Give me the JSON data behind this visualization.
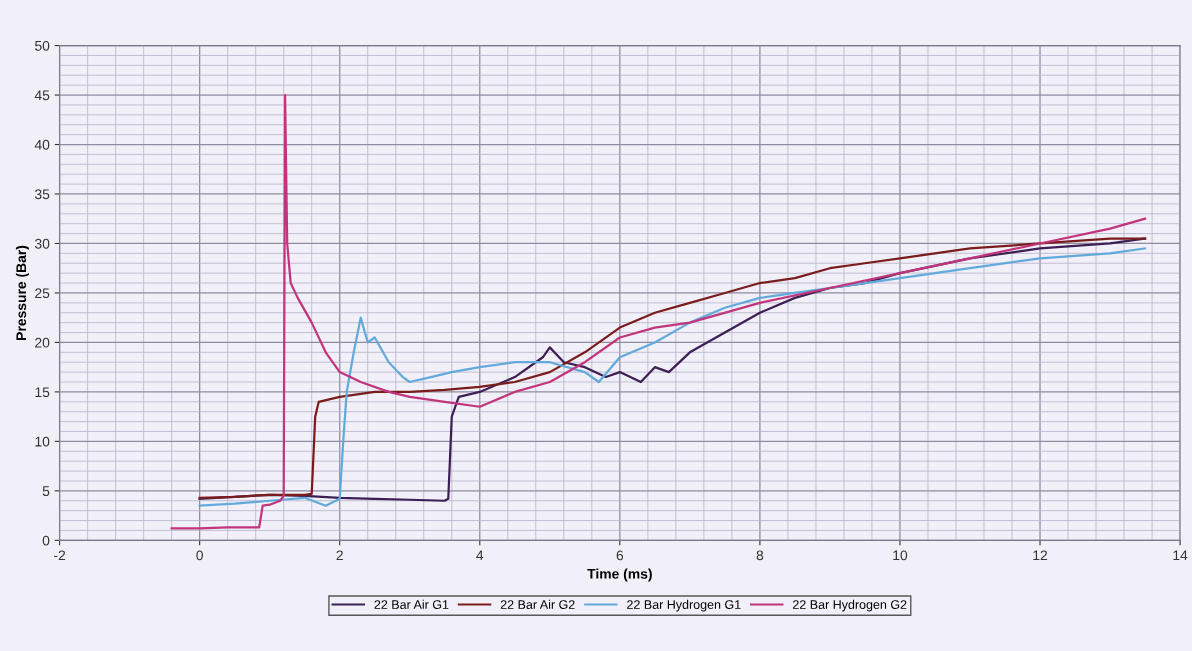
{
  "chart_data": {
    "type": "line",
    "xlabel": "Time (ms)",
    "ylabel": "Pressure (Bar)",
    "xlim": [
      -2,
      14
    ],
    "xticks": [
      -2,
      0,
      2,
      4,
      6,
      8,
      10,
      12,
      14
    ],
    "ylim": [
      0,
      50
    ],
    "yticks": [
      0,
      5,
      10,
      15,
      20,
      25,
      30,
      35,
      40,
      45,
      50
    ],
    "grid": true,
    "legend": "bottom",
    "marker": "none",
    "line_style": "solid",
    "series": [
      {
        "name": "22 Bar Air G1",
        "color": "#3b1f55",
        "x": [
          0,
          0.5,
          1.0,
          1.5,
          2.0,
          2.5,
          3.0,
          3.5,
          3.55,
          3.6,
          3.7,
          4.0,
          4.5,
          4.9,
          5.0,
          5.2,
          5.5,
          5.8,
          6.0,
          6.3,
          6.5,
          6.7,
          7.0,
          7.5,
          8.0,
          8.5,
          9.0,
          9.5,
          10.0,
          11.0,
          12.0,
          13.0,
          13.5
        ],
        "values": [
          4.2,
          4.4,
          4.6,
          4.5,
          4.3,
          4.2,
          4.1,
          4.0,
          4.2,
          12.5,
          14.5,
          15.0,
          16.5,
          18.5,
          19.5,
          18.0,
          17.5,
          16.5,
          17.0,
          16.0,
          17.5,
          17.0,
          19.0,
          21.0,
          23.0,
          24.5,
          25.5,
          26.0,
          27.0,
          28.5,
          29.5,
          30.0,
          30.5
        ]
      },
      {
        "name": "22 Bar Air G2",
        "color": "#7b1c1c",
        "x": [
          0,
          0.5,
          1.0,
          1.5,
          1.6,
          1.65,
          1.7,
          2.0,
          2.5,
          3.0,
          3.5,
          4.0,
          4.5,
          5.0,
          5.5,
          6.0,
          6.5,
          7.0,
          7.5,
          8.0,
          8.5,
          9.0,
          9.5,
          10.0,
          10.5,
          11.0,
          12.0,
          13.0,
          13.5
        ],
        "values": [
          4.3,
          4.4,
          4.6,
          4.6,
          4.7,
          12.5,
          14.0,
          14.5,
          15.0,
          15.0,
          15.2,
          15.5,
          16.0,
          17.0,
          19.0,
          21.5,
          23.0,
          24.0,
          25.0,
          26.0,
          26.5,
          27.5,
          28.0,
          28.5,
          29.0,
          29.5,
          30.0,
          30.5,
          30.5
        ]
      },
      {
        "name": "22 Bar Hydrogen G1",
        "color": "#62a9dc",
        "x": [
          0,
          0.5,
          1.0,
          1.5,
          1.8,
          2.0,
          2.05,
          2.1,
          2.2,
          2.3,
          2.4,
          2.5,
          2.7,
          2.9,
          3.0,
          3.3,
          3.6,
          4.0,
          4.5,
          5.0,
          5.5,
          5.7,
          6.0,
          6.5,
          7.0,
          7.5,
          8.0,
          8.5,
          9.0,
          9.5,
          10.0,
          11.0,
          12.0,
          13.0,
          13.5
        ],
        "values": [
          3.5,
          3.7,
          4.0,
          4.3,
          3.5,
          4.2,
          10.0,
          15.0,
          19.0,
          22.5,
          20.0,
          20.5,
          18.0,
          16.5,
          16.0,
          16.5,
          17.0,
          17.5,
          18.0,
          18.0,
          17.0,
          16.0,
          18.5,
          20.0,
          22.0,
          23.5,
          24.5,
          25.0,
          25.5,
          26.0,
          26.5,
          27.5,
          28.5,
          29.0,
          29.5
        ]
      },
      {
        "name": "22 Bar Hydrogen G2",
        "color": "#c1357d",
        "x": [
          -0.4,
          0,
          0.4,
          0.85,
          0.9,
          1.0,
          1.15,
          1.2,
          1.22,
          1.25,
          1.3,
          1.4,
          1.6,
          1.8,
          2.0,
          2.3,
          2.7,
          3.0,
          3.5,
          4.0,
          4.5,
          5.0,
          5.5,
          6.0,
          6.5,
          7.0,
          8.0,
          9.0,
          10.0,
          11.0,
          12.0,
          13.0,
          13.5
        ],
        "values": [
          1.2,
          1.2,
          1.3,
          1.3,
          3.5,
          3.6,
          4.0,
          4.5,
          45.0,
          30.0,
          26.0,
          24.5,
          22.0,
          19.0,
          17.0,
          16.0,
          15.0,
          14.5,
          14.0,
          13.5,
          15.0,
          16.0,
          18.0,
          20.5,
          21.5,
          22.0,
          24.0,
          25.5,
          27.0,
          28.5,
          30.0,
          31.5,
          32.5
        ]
      }
    ]
  }
}
